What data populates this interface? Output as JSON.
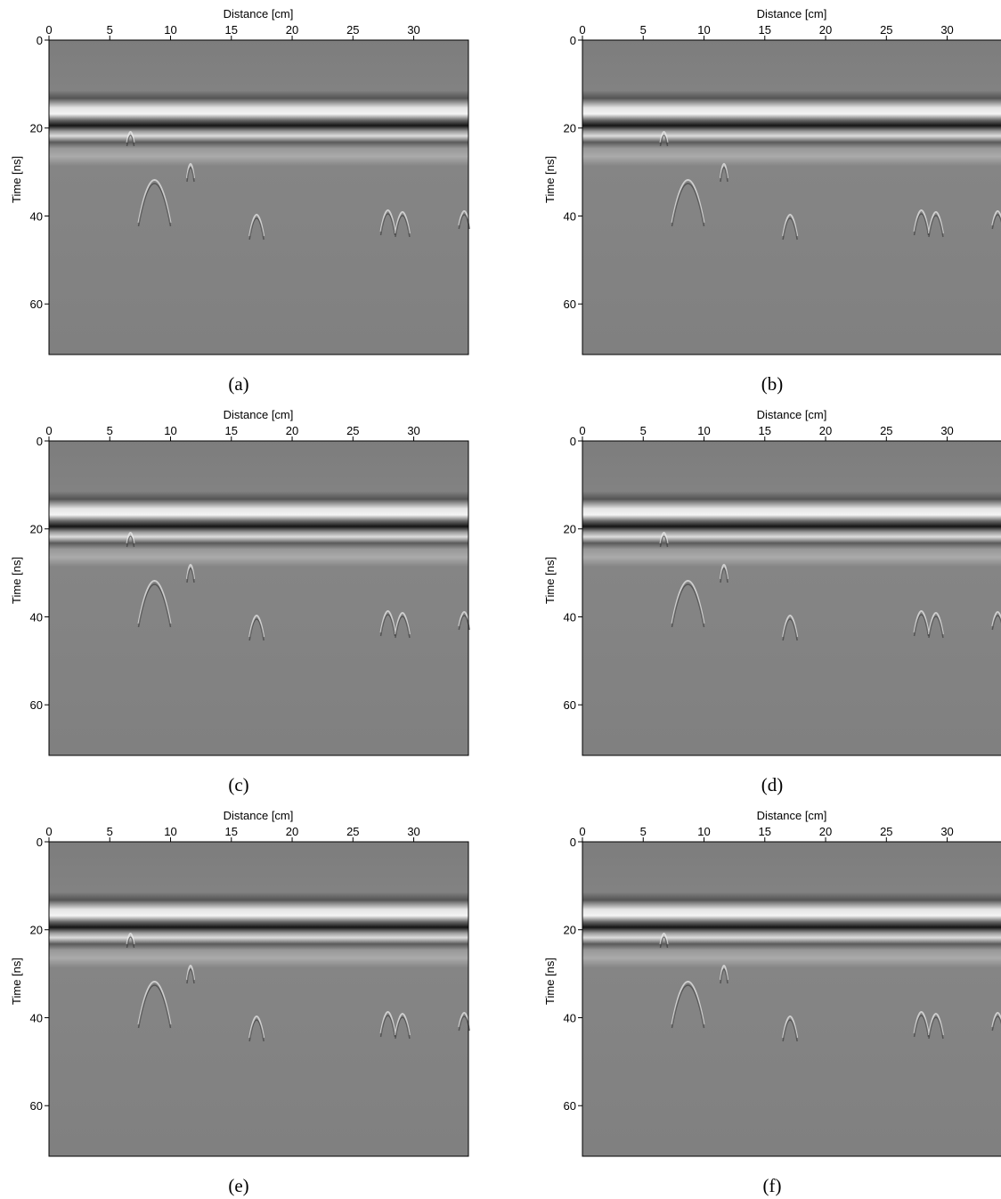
{
  "chart_data": [
    {
      "type": "radargram",
      "caption": "(a)",
      "xlabel": "Distance [cm]",
      "ylabel": "Time [ns]",
      "xlim": [
        0,
        34.5
      ],
      "ylim": [
        71.5,
        0
      ],
      "xticks": [
        0,
        5,
        10,
        15,
        20,
        25,
        30
      ],
      "yticks": [
        0,
        20,
        40,
        60
      ]
    },
    {
      "type": "radargram",
      "caption": "(b)",
      "xlabel": "Distance [cm]",
      "ylabel": "Time [ns]",
      "xlim": [
        0,
        34.5
      ],
      "ylim": [
        71.5,
        0
      ],
      "xticks": [
        0,
        5,
        10,
        15,
        20,
        25,
        30
      ],
      "yticks": [
        0,
        20,
        40,
        60
      ]
    },
    {
      "type": "radargram",
      "caption": "(c)",
      "xlabel": "Distance [cm]",
      "ylabel": "Time [ns]",
      "xlim": [
        0,
        34.5
      ],
      "ylim": [
        71.5,
        0
      ],
      "xticks": [
        0,
        5,
        10,
        15,
        20,
        25,
        30
      ],
      "yticks": [
        0,
        20,
        40,
        60
      ]
    },
    {
      "type": "radargram",
      "caption": "(d)",
      "xlabel": "Distance [cm]",
      "ylabel": "Time [ns]",
      "xlim": [
        0,
        34.5
      ],
      "ylim": [
        71.5,
        0
      ],
      "xticks": [
        0,
        5,
        10,
        15,
        20,
        25,
        30
      ],
      "yticks": [
        0,
        20,
        40,
        60
      ]
    },
    {
      "type": "radargram",
      "caption": "(e)",
      "xlabel": "Distance [cm]",
      "ylabel": "Time [ns]",
      "xlim": [
        0,
        34.5
      ],
      "ylim": [
        71.5,
        0
      ],
      "xticks": [
        0,
        5,
        10,
        15,
        20,
        25,
        30
      ],
      "yticks": [
        0,
        20,
        40,
        60
      ]
    },
    {
      "type": "radargram",
      "caption": "(f)",
      "xlabel": "Distance [cm]",
      "ylabel": "Time [ns]",
      "xlim": [
        0,
        34.5
      ],
      "ylim": [
        71.5,
        0
      ],
      "xticks": [
        0,
        5,
        10,
        15,
        20,
        25,
        30
      ],
      "yticks": [
        0,
        20,
        40,
        60
      ]
    }
  ]
}
